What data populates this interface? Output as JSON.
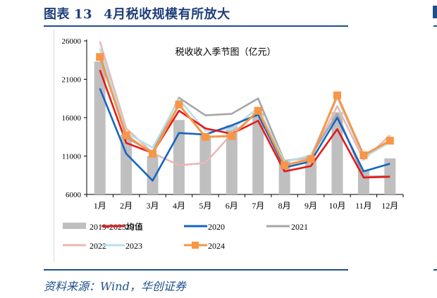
{
  "header": {
    "label": "图表",
    "number": "13",
    "title": "4月税收规模有所放大"
  },
  "source": "资料来源：Wind，华创证券",
  "colors": {
    "brand": "#1f4e8c",
    "avg_bar": "#bfbfbf",
    "s2019": "#e31a1c",
    "s2020": "#1565c0",
    "s2021": "#a6a6a6",
    "s2022": "#e8b8b8",
    "s2023": "#b7e0ea",
    "s2024": "#f79646"
  },
  "chart_data": {
    "type": "bar+line",
    "title": "税收收入季节图（亿元）",
    "xlabel": "",
    "ylabel": "",
    "ylim": [
      6000,
      26000
    ],
    "yticks": [
      6000,
      11000,
      16000,
      21000,
      26000
    ],
    "grid": false,
    "legend_position": "bottom",
    "categories": [
      "1月",
      "2月",
      "3月",
      "4月",
      "5月",
      "6月",
      "7月",
      "8月",
      "9月",
      "10月",
      "11月",
      "12月"
    ],
    "series": [
      {
        "name": "2019-2023均值",
        "kind": "bar",
        "values": [
          23300,
          13800,
          11000,
          15700,
          13700,
          15000,
          16600,
          10300,
          10800,
          16700,
          9200,
          10700
        ]
      },
      {
        "name": "2019",
        "kind": "line",
        "values": [
          22200,
          12700,
          11400,
          16900,
          14600,
          13900,
          15600,
          9000,
          9700,
          14500,
          8200,
          8300
        ]
      },
      {
        "name": "2020",
        "kind": "line",
        "values": [
          19800,
          11300,
          7800,
          14000,
          13800,
          15000,
          16400,
          9500,
          10300,
          16000,
          9000,
          10000
        ]
      },
      {
        "name": "2021",
        "kind": "line",
        "values": [
          24300,
          13400,
          11500,
          18600,
          16300,
          16500,
          18500,
          10300,
          11000,
          16500,
          8300,
          8400
        ]
      },
      {
        "name": "2022",
        "kind": "line",
        "values": [
          25900,
          14600,
          11400,
          9800,
          10100,
          13900,
          16700,
          10400,
          10700,
          17500,
          10500,
          13700
        ]
      },
      {
        "name": "2023",
        "kind": "line",
        "values": [
          25000,
          14000,
          12100,
          18400,
          14300,
          14500,
          17300,
          10200,
          11100,
          18600,
          10800,
          12800
        ]
      },
      {
        "name": "2024",
        "kind": "line",
        "marker": "square",
        "values": [
          23900,
          13700,
          11300,
          17700,
          13500,
          13600,
          16900,
          9800,
          10600,
          18900,
          11100,
          13000
        ]
      }
    ]
  },
  "legend": [
    {
      "label": "2019-2023均值"
    },
    {
      "label": "2019"
    },
    {
      "label": "2020"
    },
    {
      "label": "2021"
    },
    {
      "label": "2022"
    },
    {
      "label": "2023"
    },
    {
      "label": "2024"
    }
  ]
}
